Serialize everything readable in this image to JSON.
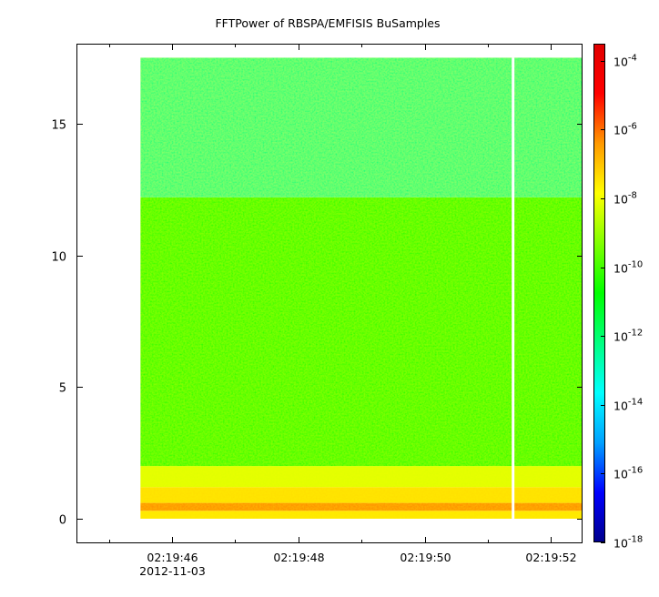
{
  "chart_data": {
    "type": "heatmap",
    "title": "FFTPower of RBSPA/EMFISIS  BuSamples",
    "xlabel": "",
    "ylabel": "",
    "x_ticks": [
      {
        "label": "02:19:46",
        "sublabel": "2012-11-03",
        "t": 46
      },
      {
        "label": "02:19:48",
        "t": 48
      },
      {
        "label": "02:19:50",
        "t": 50
      },
      {
        "label": "02:19:52",
        "t": 52
      }
    ],
    "x_minor_ticks": [
      45,
      47,
      49,
      51
    ],
    "xlim": [
      44.5,
      52.5
    ],
    "ylim": [
      -0.9,
      18.0
    ],
    "y_ticks": [
      0,
      5,
      10,
      15
    ],
    "data_start_t": 45.5,
    "data_gap_t": 51.4,
    "freq_max": 17.5,
    "bands": [
      {
        "y0": 0.0,
        "y1": 0.3,
        "log10_power": -7.5
      },
      {
        "y0": 0.3,
        "y1": 0.6,
        "log10_power": -6.3
      },
      {
        "y0": 0.6,
        "y1": 1.2,
        "log10_power": -7.4
      },
      {
        "y0": 1.2,
        "y1": 2.0,
        "log10_power": -8.2
      },
      {
        "y0": 2.0,
        "y1": 12.2,
        "log10_power": -10.3
      },
      {
        "y0": 12.2,
        "y1": 17.5,
        "log10_power": -12.1
      }
    ],
    "colorbar": {
      "scale": "log",
      "range": [
        -18,
        -3.5
      ],
      "tick_exponents": [
        -4,
        -6,
        -8,
        -10,
        -12,
        -14,
        -16,
        -18
      ],
      "base": "10",
      "colors": [
        "#00008b",
        "#0000ff",
        "#00a0ff",
        "#00ffff",
        "#00ff80",
        "#00ff00",
        "#80ff00",
        "#ffff00",
        "#ff9900",
        "#ff0000",
        "#e00000"
      ]
    }
  }
}
